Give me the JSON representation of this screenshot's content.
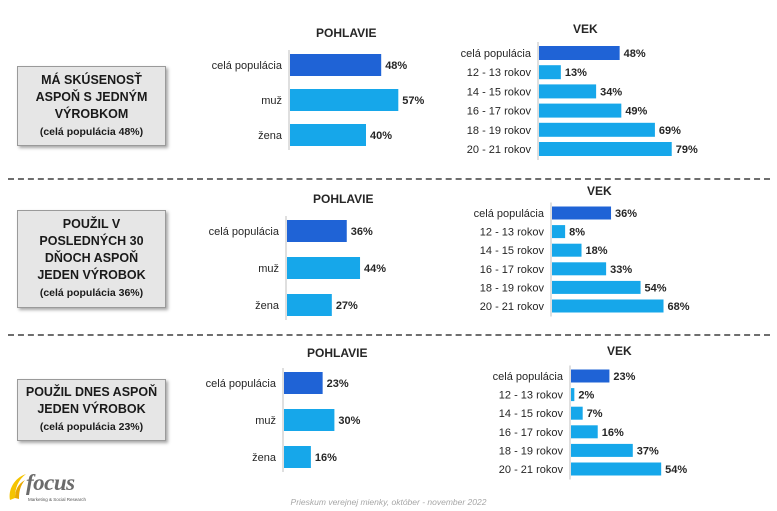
{
  "colors": {
    "primary": "#1f63d6",
    "secondary": "#16a7ea"
  },
  "labels": {
    "gender_header": "POHLAVIE",
    "age_header": "VEK"
  },
  "footer": "Prieskum verejnej mienky, október - november 2022",
  "logo": {
    "word": "focus",
    "tagline": "Marketing & Social Research"
  },
  "chart_data": [
    {
      "type": "bar",
      "title": "MÁ SKÚSENOSŤ ASPOŇ S JEDNÝM VÝROBKOM",
      "subtitle": "(celá populácia 48%)",
      "gender": {
        "categories": [
          "celá populácia",
          "muž",
          "žena"
        ],
        "values": [
          48,
          57,
          40
        ],
        "labels": [
          "48%",
          "57%",
          "40%"
        ]
      },
      "age": {
        "categories": [
          "celá populácia",
          "12 - 13 rokov",
          "14 - 15 rokov",
          "16 - 17 rokov",
          "18 - 19 rokov",
          "20 - 21 rokov"
        ],
        "values": [
          48,
          13,
          34,
          49,
          69,
          79
        ],
        "labels": [
          "48%",
          "13%",
          "34%",
          "49%",
          "69%",
          "79%"
        ]
      }
    },
    {
      "type": "bar",
      "title": "POUŽIL V POSLEDNÝCH 30 DŇOCH ASPOŇ JEDEN VÝROBOK",
      "subtitle": "(celá populácia 36%)",
      "gender": {
        "categories": [
          "celá populácia",
          "muž",
          "žena"
        ],
        "values": [
          36,
          44,
          27
        ],
        "labels": [
          "36%",
          "44%",
          "27%"
        ]
      },
      "age": {
        "categories": [
          "celá populácia",
          "12 - 13 rokov",
          "14 - 15 rokov",
          "16 - 17 rokov",
          "18 - 19 rokov",
          "20 - 21 rokov"
        ],
        "values": [
          36,
          8,
          18,
          33,
          54,
          68
        ],
        "labels": [
          "36%",
          "8%",
          "18%",
          "33%",
          "54%",
          "68%"
        ]
      }
    },
    {
      "type": "bar",
      "title": "POUŽIL DNES ASPOŇ JEDEN VÝROBOK",
      "subtitle": "(celá populácia 23%)",
      "gender": {
        "categories": [
          "celá populácia",
          "muž",
          "žena"
        ],
        "values": [
          23,
          30,
          16
        ],
        "labels": [
          "23%",
          "30%",
          "16%"
        ]
      },
      "age": {
        "categories": [
          "celá populácia",
          "12 - 13 rokov",
          "14 - 15 rokov",
          "16 - 17 rokov",
          "18 - 19 rokov",
          "20 - 21 rokov"
        ],
        "values": [
          23,
          2,
          7,
          16,
          37,
          54
        ],
        "labels": [
          "23%",
          "2%",
          "7%",
          "16%",
          "37%",
          "54%"
        ]
      }
    }
  ]
}
